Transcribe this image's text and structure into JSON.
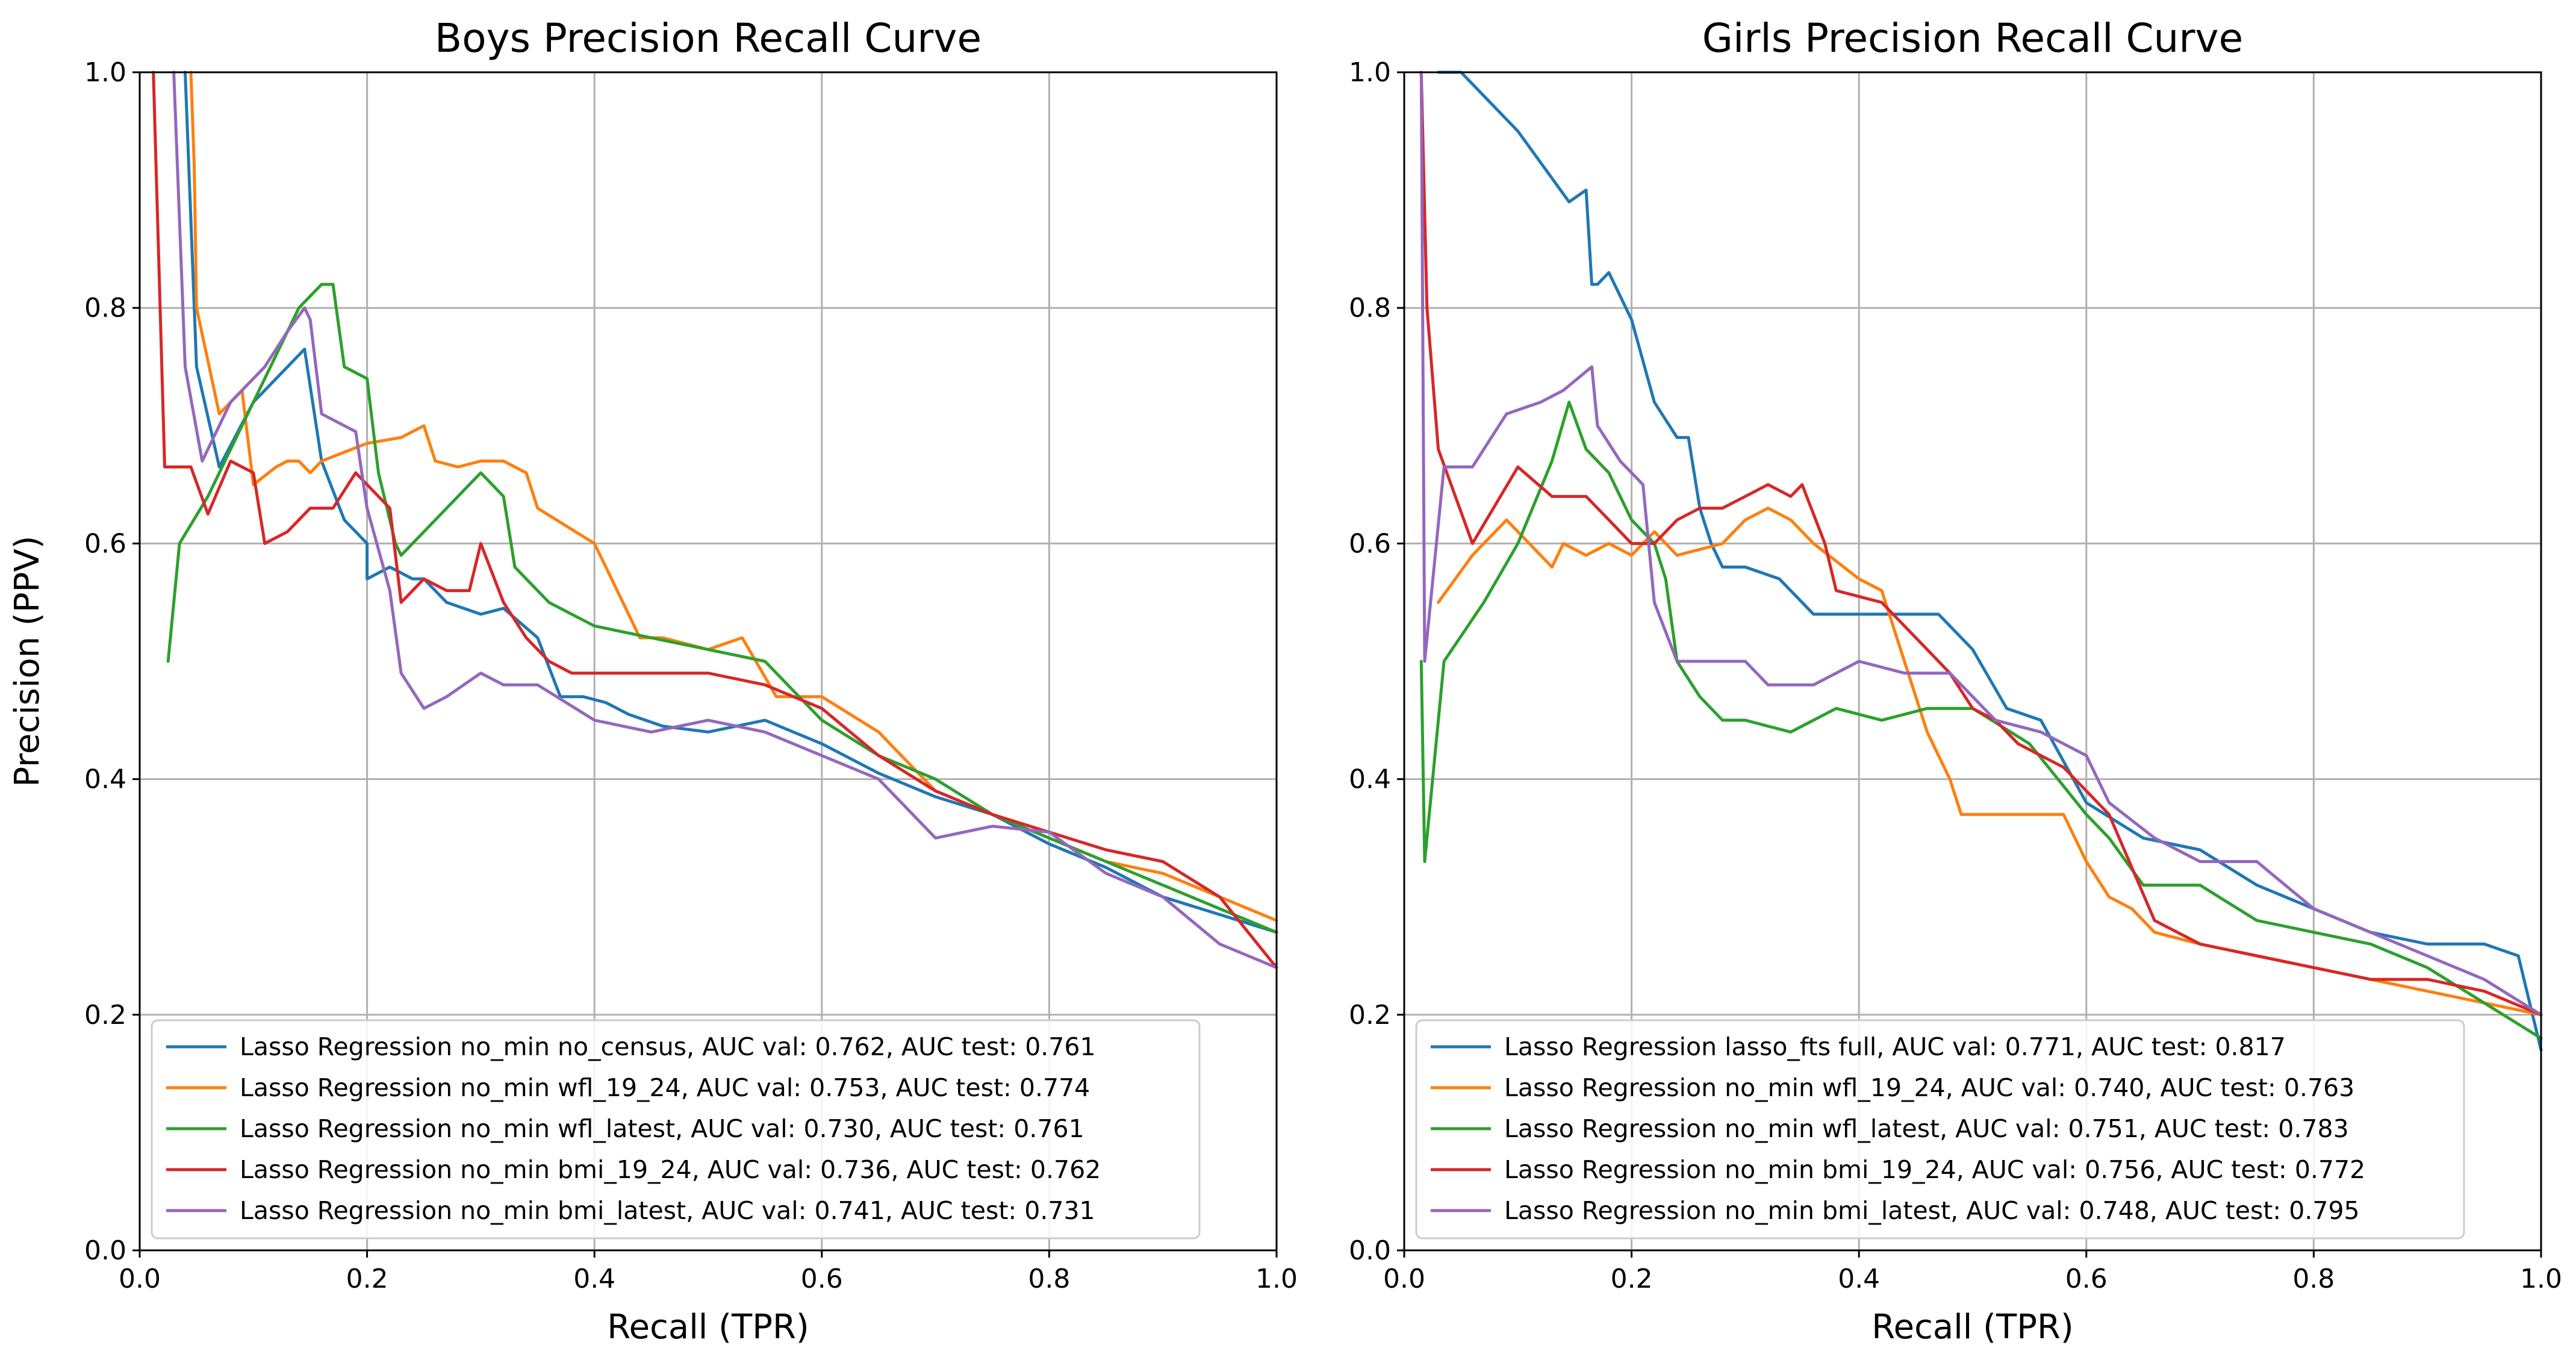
{
  "chart_data": [
    {
      "type": "line",
      "title": "Boys Precision Recall Curve",
      "xlabel": "Recall (TPR)",
      "ylabel": "Precision (PPV)",
      "xlim": [
        0.0,
        1.0
      ],
      "ylim": [
        0.0,
        1.0
      ],
      "xticks": [
        "0.0",
        "0.2",
        "0.4",
        "0.6",
        "0.8",
        "1.0"
      ],
      "yticks": [
        "0.0",
        "0.2",
        "0.4",
        "0.6",
        "0.8",
        "1.0"
      ],
      "grid": true,
      "legend_position": "lower-left",
      "series": [
        {
          "name": "Lasso Regression no_min no_census, AUC val: 0.762, AUC test: 0.761",
          "color": "#1f77b4",
          "x": [
            0.04,
            0.05,
            0.07,
            0.1,
            0.145,
            0.16,
            0.18,
            0.2,
            0.2,
            0.2,
            0.22,
            0.24,
            0.25,
            0.27,
            0.3,
            0.32,
            0.35,
            0.37,
            0.39,
            0.41,
            0.43,
            0.46,
            0.5,
            0.55,
            0.6,
            0.65,
            0.7,
            0.75,
            0.8,
            0.85,
            0.9,
            0.95,
            1.0
          ],
          "y": [
            1.0,
            0.75,
            0.665,
            0.72,
            0.765,
            0.67,
            0.62,
            0.6,
            0.58,
            0.57,
            0.58,
            0.57,
            0.57,
            0.55,
            0.54,
            0.545,
            0.52,
            0.47,
            0.47,
            0.465,
            0.455,
            0.445,
            0.44,
            0.45,
            0.43,
            0.405,
            0.385,
            0.37,
            0.345,
            0.325,
            0.3,
            0.285,
            0.27
          ]
        },
        {
          "name": "Lasso Regression no_min wfl_19_24, AUC val: 0.753, AUC test: 0.774",
          "color": "#ff7f0e",
          "x": [
            0.045,
            0.048,
            0.05,
            0.07,
            0.09,
            0.1,
            0.12,
            0.13,
            0.14,
            0.15,
            0.16,
            0.2,
            0.23,
            0.25,
            0.26,
            0.28,
            0.3,
            0.32,
            0.34,
            0.35,
            0.4,
            0.42,
            0.44,
            0.46,
            0.5,
            0.53,
            0.56,
            0.6,
            0.65,
            0.7,
            0.75,
            0.8,
            0.85,
            0.9,
            0.95,
            1.0
          ],
          "y": [
            1.0,
            0.92,
            0.8,
            0.71,
            0.73,
            0.65,
            0.665,
            0.67,
            0.67,
            0.66,
            0.67,
            0.685,
            0.69,
            0.7,
            0.67,
            0.665,
            0.67,
            0.67,
            0.66,
            0.63,
            0.6,
            0.56,
            0.52,
            0.52,
            0.51,
            0.52,
            0.47,
            0.47,
            0.44,
            0.39,
            0.37,
            0.35,
            0.33,
            0.32,
            0.3,
            0.28
          ]
        },
        {
          "name": "Lasso Regression no_min wfl_latest, AUC val: 0.730, AUC test: 0.761",
          "color": "#2ca02c",
          "x": [
            0.025,
            0.035,
            0.06,
            0.09,
            0.12,
            0.14,
            0.16,
            0.17,
            0.18,
            0.2,
            0.21,
            0.225,
            0.23,
            0.26,
            0.28,
            0.3,
            0.32,
            0.33,
            0.36,
            0.38,
            0.4,
            0.45,
            0.5,
            0.55,
            0.6,
            0.65,
            0.7,
            0.75,
            0.8,
            0.85,
            0.9,
            0.95,
            1.0
          ],
          "y": [
            0.5,
            0.6,
            0.64,
            0.7,
            0.76,
            0.8,
            0.82,
            0.82,
            0.75,
            0.74,
            0.66,
            0.6,
            0.59,
            0.62,
            0.64,
            0.66,
            0.64,
            0.58,
            0.55,
            0.54,
            0.53,
            0.52,
            0.51,
            0.5,
            0.45,
            0.42,
            0.4,
            0.37,
            0.35,
            0.33,
            0.31,
            0.29,
            0.27
          ]
        },
        {
          "name": "Lasso Regression no_min bmi_19_24, AUC val: 0.736, AUC test: 0.762",
          "color": "#d62728",
          "x": [
            0.012,
            0.022,
            0.03,
            0.045,
            0.06,
            0.08,
            0.1,
            0.11,
            0.13,
            0.15,
            0.17,
            0.19,
            0.21,
            0.22,
            0.23,
            0.25,
            0.27,
            0.29,
            0.3,
            0.32,
            0.34,
            0.36,
            0.38,
            0.4,
            0.45,
            0.5,
            0.55,
            0.6,
            0.65,
            0.7,
            0.75,
            0.8,
            0.85,
            0.9,
            0.95,
            1.0
          ],
          "y": [
            1.0,
            0.665,
            0.665,
            0.665,
            0.625,
            0.67,
            0.66,
            0.6,
            0.61,
            0.63,
            0.63,
            0.66,
            0.64,
            0.63,
            0.55,
            0.57,
            0.56,
            0.56,
            0.6,
            0.55,
            0.52,
            0.5,
            0.49,
            0.49,
            0.49,
            0.49,
            0.48,
            0.46,
            0.42,
            0.39,
            0.37,
            0.355,
            0.34,
            0.33,
            0.3,
            0.24
          ]
        },
        {
          "name": "Lasso Regression no_min bmi_latest, AUC val: 0.741, AUC test: 0.731",
          "color": "#9467bd",
          "x": [
            0.03,
            0.04,
            0.055,
            0.08,
            0.11,
            0.13,
            0.145,
            0.15,
            0.16,
            0.18,
            0.19,
            0.2,
            0.22,
            0.23,
            0.25,
            0.27,
            0.3,
            0.32,
            0.35,
            0.4,
            0.45,
            0.5,
            0.55,
            0.6,
            0.65,
            0.7,
            0.75,
            0.8,
            0.85,
            0.9,
            0.95,
            1.0
          ],
          "y": [
            1.0,
            0.75,
            0.67,
            0.72,
            0.75,
            0.78,
            0.8,
            0.79,
            0.71,
            0.7,
            0.695,
            0.63,
            0.56,
            0.49,
            0.46,
            0.47,
            0.49,
            0.48,
            0.48,
            0.45,
            0.44,
            0.45,
            0.44,
            0.42,
            0.4,
            0.35,
            0.36,
            0.355,
            0.32,
            0.3,
            0.26,
            0.24
          ]
        }
      ]
    },
    {
      "type": "line",
      "title": "Girls Precision Recall Curve",
      "xlabel": "Recall (TPR)",
      "ylabel": "",
      "xlim": [
        0.0,
        1.0
      ],
      "ylim": [
        0.0,
        1.0
      ],
      "xticks": [
        "0.0",
        "0.2",
        "0.4",
        "0.6",
        "0.8",
        "1.0"
      ],
      "yticks": [
        "0.0",
        "0.2",
        "0.4",
        "0.6",
        "0.8",
        "1.0"
      ],
      "grid": true,
      "legend_position": "lower-left",
      "series": [
        {
          "name": "Lasso Regression lasso_fts full, AUC val: 0.771, AUC test: 0.817",
          "color": "#1f77b4",
          "x": [
            0.03,
            0.05,
            0.1,
            0.145,
            0.16,
            0.165,
            0.17,
            0.18,
            0.2,
            0.22,
            0.24,
            0.25,
            0.26,
            0.27,
            0.28,
            0.3,
            0.33,
            0.36,
            0.4,
            0.44,
            0.47,
            0.5,
            0.53,
            0.56,
            0.6,
            0.65,
            0.7,
            0.75,
            0.8,
            0.85,
            0.9,
            0.95,
            0.98,
            1.0
          ],
          "y": [
            1.0,
            1.0,
            0.95,
            0.89,
            0.9,
            0.82,
            0.82,
            0.83,
            0.79,
            0.72,
            0.69,
            0.69,
            0.63,
            0.6,
            0.58,
            0.58,
            0.57,
            0.54,
            0.54,
            0.54,
            0.54,
            0.51,
            0.46,
            0.45,
            0.38,
            0.35,
            0.34,
            0.31,
            0.29,
            0.27,
            0.26,
            0.26,
            0.25,
            0.17
          ]
        },
        {
          "name": "Lasso Regression no_min wfl_19_24, AUC val: 0.740, AUC test: 0.763",
          "color": "#ff7f0e",
          "x": [
            0.03,
            0.06,
            0.09,
            0.11,
            0.13,
            0.14,
            0.16,
            0.18,
            0.2,
            0.22,
            0.24,
            0.28,
            0.3,
            0.32,
            0.34,
            0.36,
            0.4,
            0.42,
            0.44,
            0.46,
            0.48,
            0.49,
            0.52,
            0.56,
            0.58,
            0.6,
            0.62,
            0.64,
            0.66,
            0.7,
            0.75,
            0.8,
            0.85,
            0.9,
            0.95,
            1.0
          ],
          "y": [
            0.55,
            0.59,
            0.62,
            0.6,
            0.58,
            0.6,
            0.59,
            0.6,
            0.59,
            0.61,
            0.59,
            0.6,
            0.62,
            0.63,
            0.62,
            0.6,
            0.57,
            0.56,
            0.5,
            0.44,
            0.4,
            0.37,
            0.37,
            0.37,
            0.37,
            0.33,
            0.3,
            0.29,
            0.27,
            0.26,
            0.25,
            0.24,
            0.23,
            0.22,
            0.21,
            0.2
          ]
        },
        {
          "name": "Lasso Regression no_min wfl_latest, AUC val: 0.751, AUC test: 0.783",
          "color": "#2ca02c",
          "x": [
            0.015,
            0.018,
            0.035,
            0.07,
            0.1,
            0.13,
            0.145,
            0.16,
            0.18,
            0.2,
            0.22,
            0.23,
            0.24,
            0.26,
            0.28,
            0.3,
            0.34,
            0.38,
            0.42,
            0.46,
            0.5,
            0.55,
            0.6,
            0.62,
            0.65,
            0.7,
            0.75,
            0.8,
            0.85,
            0.9,
            0.95,
            1.0
          ],
          "y": [
            0.5,
            0.33,
            0.5,
            0.55,
            0.6,
            0.67,
            0.72,
            0.68,
            0.66,
            0.62,
            0.6,
            0.57,
            0.5,
            0.47,
            0.45,
            0.45,
            0.44,
            0.46,
            0.45,
            0.46,
            0.46,
            0.43,
            0.37,
            0.35,
            0.31,
            0.31,
            0.28,
            0.27,
            0.26,
            0.24,
            0.21,
            0.18
          ]
        },
        {
          "name": "Lasso Regression no_min bmi_19_24, AUC val: 0.756, AUC test: 0.772",
          "color": "#d62728",
          "x": [
            0.015,
            0.02,
            0.03,
            0.06,
            0.1,
            0.13,
            0.16,
            0.2,
            0.22,
            0.24,
            0.26,
            0.28,
            0.3,
            0.32,
            0.34,
            0.35,
            0.37,
            0.38,
            0.42,
            0.44,
            0.46,
            0.48,
            0.5,
            0.52,
            0.54,
            0.58,
            0.6,
            0.62,
            0.66,
            0.7,
            0.75,
            0.8,
            0.85,
            0.9,
            0.95,
            1.0
          ],
          "y": [
            1.0,
            0.8,
            0.68,
            0.6,
            0.665,
            0.64,
            0.64,
            0.6,
            0.6,
            0.62,
            0.63,
            0.63,
            0.64,
            0.65,
            0.64,
            0.65,
            0.6,
            0.56,
            0.55,
            0.53,
            0.51,
            0.49,
            0.46,
            0.45,
            0.43,
            0.41,
            0.39,
            0.37,
            0.28,
            0.26,
            0.25,
            0.24,
            0.23,
            0.23,
            0.22,
            0.2
          ]
        },
        {
          "name": "Lasso Regression no_min bmi_latest, AUC val: 0.748, AUC test: 0.795",
          "color": "#9467bd",
          "x": [
            0.015,
            0.018,
            0.035,
            0.06,
            0.09,
            0.12,
            0.14,
            0.165,
            0.17,
            0.19,
            0.21,
            0.22,
            0.24,
            0.26,
            0.28,
            0.3,
            0.32,
            0.36,
            0.4,
            0.44,
            0.48,
            0.52,
            0.56,
            0.6,
            0.62,
            0.66,
            0.7,
            0.75,
            0.8,
            0.85,
            0.9,
            0.95,
            1.0
          ],
          "y": [
            1.0,
            0.5,
            0.665,
            0.665,
            0.71,
            0.72,
            0.73,
            0.75,
            0.7,
            0.67,
            0.65,
            0.55,
            0.5,
            0.5,
            0.5,
            0.5,
            0.48,
            0.48,
            0.5,
            0.49,
            0.49,
            0.45,
            0.44,
            0.42,
            0.38,
            0.35,
            0.33,
            0.33,
            0.29,
            0.27,
            0.25,
            0.23,
            0.2
          ]
        }
      ]
    }
  ]
}
